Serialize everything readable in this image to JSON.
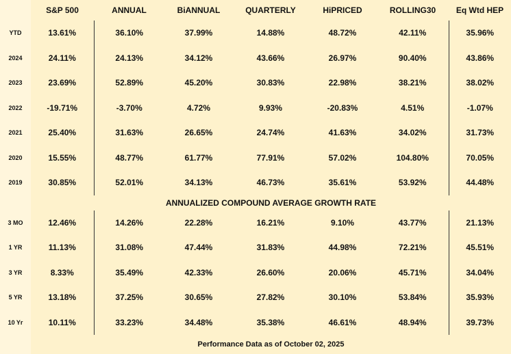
{
  "table": {
    "columns": [
      "S&P 500",
      "ANNUAL",
      "BiANNUAL",
      "QUARTERLY",
      "HiPRICED",
      "ROLLING30",
      "Eq Wtd HEP"
    ],
    "rows": [
      {
        "label": "YTD",
        "values": [
          "13.61%",
          "36.10%",
          "37.99%",
          "14.88%",
          "48.72%",
          "42.11%",
          "35.96%"
        ]
      },
      {
        "label": "2024",
        "values": [
          "24.11%",
          "24.13%",
          "34.12%",
          "43.66%",
          "26.97%",
          "90.40%",
          "43.86%"
        ]
      },
      {
        "label": "2023",
        "values": [
          "23.69%",
          "52.89%",
          "45.20%",
          "30.83%",
          "22.98%",
          "38.21%",
          "38.02%"
        ]
      },
      {
        "label": "2022",
        "values": [
          "-19.71%",
          "-3.70%",
          "4.72%",
          "9.93%",
          "-20.83%",
          "4.51%",
          "-1.07%"
        ]
      },
      {
        "label": "2021",
        "values": [
          "25.40%",
          "31.63%",
          "26.65%",
          "24.74%",
          "41.63%",
          "34.02%",
          "31.73%"
        ]
      },
      {
        "label": "2020",
        "values": [
          "15.55%",
          "48.77%",
          "61.77%",
          "77.91%",
          "57.02%",
          "104.80%",
          "70.05%"
        ]
      },
      {
        "label": "2019",
        "values": [
          "30.85%",
          "52.01%",
          "34.13%",
          "46.73%",
          "35.61%",
          "53.92%",
          "44.48%"
        ]
      }
    ],
    "section_title": "ANNUALIZED COMPOUND AVERAGE GROWTH RATE",
    "section_rows": [
      {
        "label": "3 MO",
        "values": [
          "12.46%",
          "14.26%",
          "22.28%",
          "16.21%",
          "9.10%",
          "43.77%",
          "21.13%"
        ]
      },
      {
        "label": "1 YR",
        "values": [
          "11.13%",
          "31.08%",
          "47.44%",
          "31.83%",
          "44.98%",
          "72.21%",
          "45.51%"
        ]
      },
      {
        "label": "3 YR",
        "values": [
          "8.33%",
          "35.49%",
          "42.33%",
          "26.60%",
          "20.06%",
          "45.71%",
          "34.04%"
        ]
      },
      {
        "label": "5 YR",
        "values": [
          "13.18%",
          "37.25%",
          "30.65%",
          "27.82%",
          "30.10%",
          "53.84%",
          "35.93%"
        ]
      },
      {
        "label": "10 Yr",
        "values": [
          "10.11%",
          "33.23%",
          "34.48%",
          "35.38%",
          "46.61%",
          "48.94%",
          "39.73%"
        ]
      }
    ],
    "footer": "Performance Data as of October 02, 2025"
  }
}
